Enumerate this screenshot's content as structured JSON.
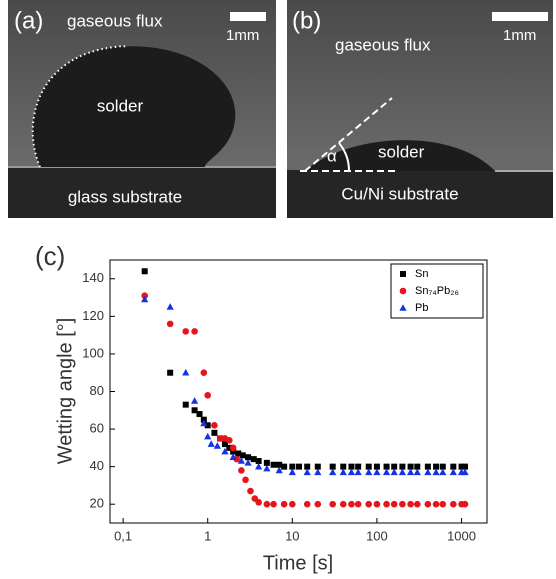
{
  "panels": [
    {
      "label": "(a)",
      "top": "gaseous flux",
      "scale": "1mm",
      "drop": "solder",
      "bottom": "glass substrate"
    },
    {
      "label": "(b)",
      "top": "gaseous flux",
      "scale": "1mm",
      "drop": "solder",
      "angle": "α",
      "bottom": "Cu/Ni substrate"
    }
  ],
  "chart_data": {
    "type": "scatter",
    "label": "(c)",
    "x_label": "Time [s]",
    "y_label": "Wetting angle [°]",
    "xscale": "log",
    "xlim": [
      0.07,
      2000
    ],
    "ylim": [
      10,
      150
    ],
    "xticks": [
      {
        "value": 0.1,
        "label": "0,1"
      },
      1,
      10,
      100,
      1000
    ],
    "yticks": [
      20,
      40,
      60,
      80,
      100,
      120,
      140
    ],
    "legend": "upper right",
    "series": [
      {
        "name": "Sn",
        "color": "#000000",
        "marker": "square",
        "x": [
          0.18,
          0.36,
          0.55,
          0.7,
          0.8,
          0.9,
          1.0,
          1.2,
          1.4,
          1.6,
          1.8,
          2,
          2.3,
          2.6,
          3,
          3.5,
          4,
          5,
          6,
          7,
          8,
          10,
          12,
          15,
          20,
          30,
          40,
          50,
          60,
          80,
          100,
          130,
          160,
          200,
          250,
          300,
          400,
          500,
          600,
          800,
          1000,
          1100
        ],
        "values": [
          144,
          90,
          73,
          70,
          68,
          65,
          62,
          58,
          55,
          52,
          50,
          48,
          47,
          46,
          45,
          44,
          43,
          42,
          41,
          41,
          40,
          40,
          40,
          40,
          40,
          40,
          40,
          40,
          40,
          40,
          40,
          40,
          40,
          40,
          40,
          40,
          40,
          40,
          40,
          40,
          40,
          40
        ]
      },
      {
        "name": "Sn₇₄Pb₂₆",
        "color": "#e8141c",
        "marker": "circle",
        "x": [
          0.18,
          0.36,
          0.55,
          0.7,
          0.9,
          1.0,
          1.2,
          1.4,
          1.6,
          1.8,
          2,
          2.2,
          2.5,
          2.8,
          3.2,
          3.6,
          4,
          5,
          6,
          8,
          10,
          15,
          20,
          30,
          40,
          50,
          60,
          80,
          100,
          130,
          160,
          200,
          250,
          300,
          400,
          500,
          600,
          800,
          1000,
          1100
        ],
        "values": [
          131,
          116,
          112,
          112,
          90,
          78,
          62,
          55,
          55,
          54,
          50,
          44,
          38,
          33,
          27,
          23,
          21,
          20,
          20,
          20,
          20,
          20,
          20,
          20,
          20,
          20,
          20,
          20,
          20,
          20,
          20,
          20,
          20,
          20,
          20,
          20,
          20,
          20,
          20,
          20
        ]
      },
      {
        "name": "Pb",
        "color": "#1432e6",
        "marker": "triangle",
        "x": [
          0.18,
          0.36,
          0.55,
          0.7,
          0.9,
          1.0,
          1.1,
          1.3,
          1.6,
          2,
          2.5,
          3,
          4,
          5,
          7,
          10,
          15,
          20,
          30,
          40,
          50,
          60,
          80,
          100,
          130,
          160,
          200,
          250,
          300,
          400,
          500,
          600,
          800,
          1000,
          1100
        ],
        "values": [
          129,
          125,
          90,
          75,
          63,
          56,
          52,
          51,
          48,
          45,
          43,
          42,
          40,
          39,
          38,
          37,
          37,
          37,
          37,
          37,
          37,
          37,
          37,
          37,
          37,
          37,
          37,
          37,
          37,
          37,
          37,
          37,
          37,
          37,
          37
        ]
      }
    ]
  }
}
